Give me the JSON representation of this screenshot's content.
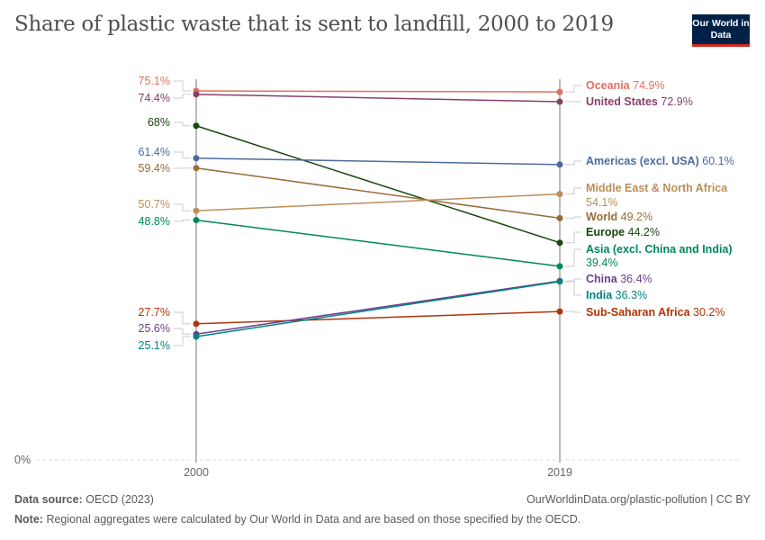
{
  "title": "Share of plastic waste that is sent to landfill, 2000 to 2019",
  "logo": "Our World in Data",
  "chart_data": {
    "type": "line",
    "title": "Share of plastic waste that is sent to landfill, 2000 to 2019",
    "x": [
      "2000",
      "2019"
    ],
    "ylim": [
      0,
      75.1
    ],
    "y_ticks": [
      "0%"
    ],
    "grid": false,
    "series": [
      {
        "name": "Oceania",
        "values": [
          75.1,
          74.9
        ],
        "color": "#e2705d",
        "labels": [
          "75.1%",
          "74.9%"
        ]
      },
      {
        "name": "United States",
        "values": [
          74.4,
          72.9
        ],
        "color": "#883f6a",
        "labels": [
          "74.4%",
          "72.9%"
        ]
      },
      {
        "name": "Europe",
        "values": [
          68,
          44.2
        ],
        "color": "#18470f",
        "labels": [
          "68%",
          "44.2%"
        ]
      },
      {
        "name": "Americas (excl. USA)",
        "values": [
          61.4,
          60.1
        ],
        "color": "#4c6a9c",
        "labels": [
          "61.4%",
          "60.1%"
        ]
      },
      {
        "name": "World",
        "values": [
          59.4,
          49.2
        ],
        "color": "#996d39",
        "labels": [
          "59.4%",
          "49.2%"
        ]
      },
      {
        "name": "Middle East & North Africa",
        "values": [
          50.7,
          54.1
        ],
        "color": "#bc8e5a",
        "labels": [
          "50.7%",
          "54.1%"
        ]
      },
      {
        "name": "Asia (excl. China and India)",
        "values": [
          48.8,
          39.4
        ],
        "color": "#00875e",
        "labels": [
          "48.8%",
          "39.4%"
        ]
      },
      {
        "name": "Sub-Saharan Africa",
        "values": [
          27.7,
          30.2
        ],
        "color": "#b13507",
        "labels": [
          "27.7%",
          "30.2%"
        ]
      },
      {
        "name": "China",
        "values": [
          25.6,
          36.4
        ],
        "color": "#6d3e91",
        "labels": [
          "25.6%",
          "36.4%"
        ]
      },
      {
        "name": "India",
        "values": [
          25.1,
          36.3
        ],
        "color": "#00847e",
        "labels": [
          "25.1%",
          "36.3%"
        ]
      }
    ]
  },
  "footer": {
    "source_label": "Data source:",
    "source": "OECD (2023)",
    "url": "OurWorldinData.org/plastic-pollution | CC BY",
    "note_label": "Note:",
    "note": "Regional aggregates were calculated by Our World in Data and are based on those specified by the OECD."
  }
}
